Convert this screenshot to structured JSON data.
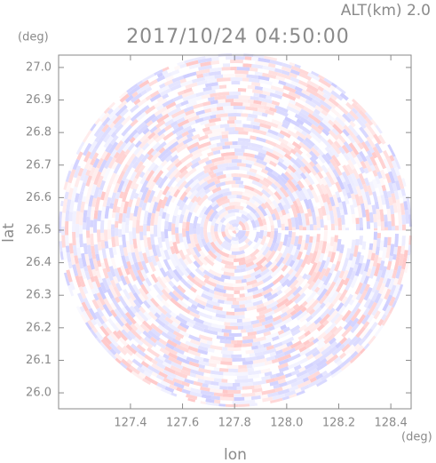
{
  "chart_data": {
    "type": "polar-field",
    "title": "2017/10/24 04:50:00",
    "annotation": "ALT(km) 2.0",
    "x_label": "lon",
    "x_unit": "(deg)",
    "y_label": "lat",
    "y_unit": "(deg)",
    "xlim": [
      127.124,
      128.478
    ],
    "ylim": [
      25.951,
      27.038
    ],
    "xticks": [
      127.4,
      127.6,
      127.8,
      {
        "value": 128.0,
        "label": "128.0"
      },
      128.2,
      128.4
    ],
    "yticks": [
      {
        "value": 26.0,
        "label": "26.0"
      },
      26.1,
      26.2,
      26.3,
      26.4,
      26.5,
      26.6,
      26.7,
      26.8,
      26.9,
      {
        "value": 27.0,
        "label": "27.0"
      }
    ]
  }
}
